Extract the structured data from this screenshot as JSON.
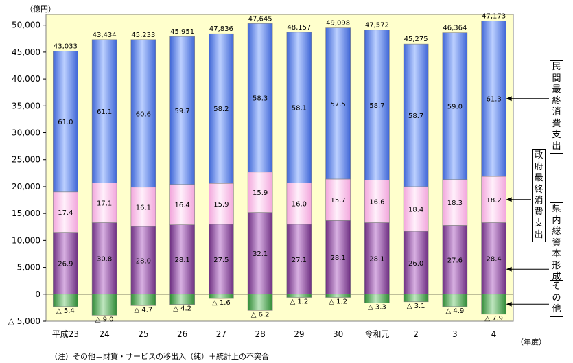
{
  "chart_data": {
    "type": "bar",
    "stacked": true,
    "categories": [
      "平成23",
      "24",
      "25",
      "26",
      "27",
      "28",
      "29",
      "30",
      "令和元",
      "2",
      "3",
      "4"
    ],
    "ylim": [
      -5000,
      52000
    ],
    "yticks": [
      -5000,
      0,
      5000,
      10000,
      15000,
      20000,
      25000,
      30000,
      35000,
      40000,
      45000,
      50000
    ],
    "ytick_labels": [
      "△ 5,000",
      "0",
      "5,000",
      "10,000",
      "15,000",
      "20,000",
      "25,000",
      "30,000",
      "35,000",
      "40,000",
      "45,000",
      "50,000"
    ],
    "totals": [
      43033,
      43434,
      45233,
      45951,
      47836,
      47645,
      48157,
      49098,
      47572,
      45275,
      46364,
      47173
    ],
    "total_labels": [
      "43,033",
      "43,434",
      "45,233",
      "45,951",
      "47,836",
      "47,645",
      "48,157",
      "49,098",
      "47,572",
      "45,275",
      "46,364",
      "47,173"
    ],
    "series": [
      {
        "name": "県内総資本形成",
        "values": [
          11500,
          13300,
          12600,
          12900,
          13000,
          15200,
          13000,
          13700,
          13300,
          11700,
          12800,
          13300
        ],
        "shares": [
          "26.9",
          "30.8",
          "28.0",
          "28.1",
          "27.5",
          "32.1",
          "27.1",
          "28.1",
          "28.1",
          "26.0",
          "27.6",
          "28.4"
        ],
        "color": "#8a4d96"
      },
      {
        "name": "政府最終消費支出",
        "values": [
          7500,
          7400,
          7300,
          7500,
          7600,
          7500,
          7700,
          7700,
          7900,
          8300,
          8500,
          8600
        ],
        "shares": [
          "17.4",
          "17.1",
          "16.1",
          "16.4",
          "15.9",
          "15.9",
          "16.0",
          "15.7",
          "16.6",
          "18.4",
          "18.3",
          "18.2"
        ],
        "color": "#f4c0e8"
      },
      {
        "name": "民間最終消費支出",
        "values": [
          26200,
          26600,
          27400,
          27500,
          27800,
          27600,
          28000,
          28100,
          27900,
          26500,
          27300,
          28900
        ],
        "shares": [
          "61.0",
          "61.1",
          "60.6",
          "59.7",
          "58.2",
          "58.3",
          "58.1",
          "57.5",
          "58.7",
          "58.7",
          "59.0",
          "61.3"
        ],
        "color": "#6a8fe8"
      },
      {
        "name": "その他",
        "values": [
          -2300,
          -3900,
          -2100,
          -1900,
          -800,
          -3000,
          -600,
          -600,
          -1600,
          -1400,
          -2300,
          -3700
        ],
        "shares": [
          "△ 5.4",
          "△ 9.0",
          "△ 4.7",
          "△ 4.2",
          "△ 1.6",
          "△ 6.2",
          "△ 1.2",
          "△ 1.2",
          "△ 3.3",
          "△ 3.1",
          "△ 4.9",
          "△ 7.9"
        ],
        "color": "#4fa050"
      }
    ],
    "yunit": "（億円）",
    "xunit": "（年度）",
    "note": "（注）その他＝財貨・サービスの移出入（純）＋統計上の不突合",
    "plot_background": "#ffffcc",
    "grid": false
  }
}
